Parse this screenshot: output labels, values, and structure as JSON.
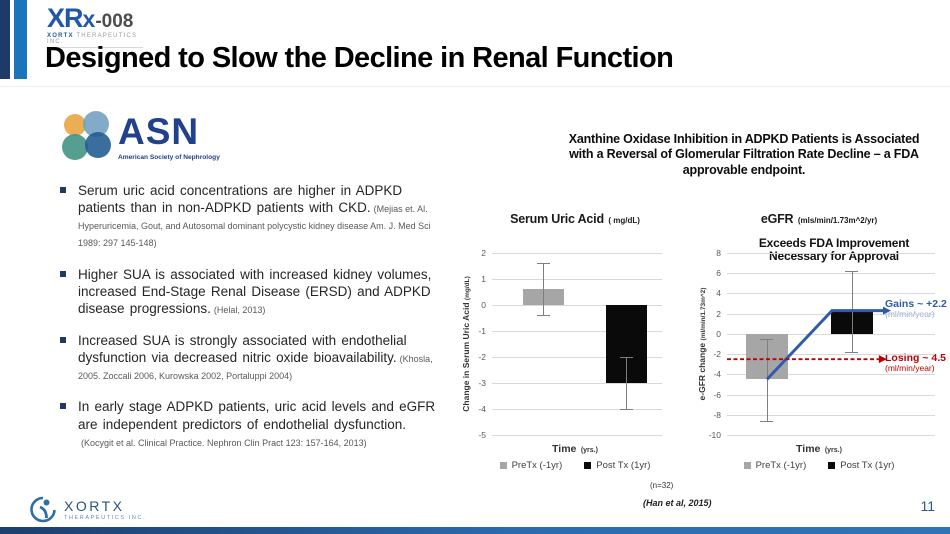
{
  "slide": {
    "title": "Designed to Slow the Decline in Renal Function",
    "page_number": "11"
  },
  "brand": {
    "logo_part1": "XR",
    "logo_part2": "x",
    "logo_part3": "-008",
    "logo_subtext_brand": "XORTX",
    "logo_subtext_rest": " THERAPEUTICS INC."
  },
  "asn": {
    "acronym": "ASN",
    "name": "American Society of Nephrology"
  },
  "bullets": [
    {
      "main": "Serum uric acid concentrations are higher in ADPKD patients than in non-ADPKD patients with CKD.",
      "citation": "(Mejias et. Al. Hyperuricemia, Gout, and Autosomal dominant polycystic kidney disease Am. J. Med Sci 1989: 297 145-148)"
    },
    {
      "main": "Higher SUA is associated with increased kidney volumes, increased End-Stage Renal Disease (ERSD) and ADPKD disease progressions.",
      "citation": "(Helal, 2013)"
    },
    {
      "main": "Increased SUA is strongly associated with endothelial dysfunction via decreased nitric oxide bioavailability.",
      "citation": "(Khosla, 2005. Zoccali 2006, Kurowska 2002, Portaluppi 2004)"
    },
    {
      "main": "In early stage ADPKD patients, uric acid levels and eGFR are independent predictors of endothelial dysfunction.",
      "citation": "(Kocygit et al. Clinical Practice. Nephron Clin Pract 123: 157-164, 2013)"
    }
  ],
  "right_panel": {
    "heading": "Xanthine Oxidase Inhibition in ADPKD Patients is Associated with a Reversal of Glomerular Filtration Rate Decline – a FDA approvable endpoint.",
    "sample_size": "(n=32)",
    "citation": "(Han et al, 2015)"
  },
  "footer": {
    "brand": "XORTX",
    "brand_sub": "THERAPEUTICS INC."
  },
  "colors": {
    "accent_dark": "#1e3a68",
    "accent_light": "#1b75bb",
    "brand_blue": "#2257a8",
    "gains_blue": "#2e5ca8",
    "losing_red": "#c00000"
  },
  "chart_data": [
    {
      "type": "bar",
      "title": "Serum Uric Acid",
      "title_unit": "( mg/dL)",
      "ylabel": "Change in Serum Uric Acid",
      "ylabel_unit": "(mg/dL)",
      "xlabel": "Time",
      "xlabel_unit": "(yrs.)",
      "ylim": [
        -5,
        2
      ],
      "ytick_step": 1,
      "grid": true,
      "categories": [
        "PreTx (-1yr)",
        "Post Tx (1yr)"
      ],
      "series": [
        {
          "name": "PreTx (-1yr)",
          "color": "#a6a6a6",
          "value": 0.6,
          "error_low": -0.4,
          "error_high": 1.6,
          "xf": 0.3
        },
        {
          "name": "Post Tx (1yr)",
          "color": "#0a0a0a",
          "value": -3.0,
          "error_low": -4.0,
          "error_high": -2.0,
          "xf": 0.79
        }
      ],
      "legend": [
        {
          "label": "PreTx (-1yr)",
          "color": "#a6a6a6"
        },
        {
          "label": "Post Tx (1yr)",
          "color": "#0a0a0a"
        }
      ]
    },
    {
      "type": "bar",
      "title": "eGFR",
      "title_unit": "(mls/min/1.73m^2/yr)",
      "ylabel": "e-GFR change",
      "ylabel_unit": "(ml/min/1.73m^2)",
      "xlabel": "Time",
      "xlabel_unit": "(yrs.)",
      "ylim": [
        -10,
        8
      ],
      "ytick_step": 2,
      "grid": true,
      "annotation": {
        "line1": "Exceeds FDA Improvement",
        "line2": "Necessary for Approval"
      },
      "categories": [
        "PreTx (-1yr)",
        "Post Tx (1yr)"
      ],
      "series": [
        {
          "name": "PreTx (-1yr)",
          "color": "#a6a6a6",
          "value": -4.5,
          "error_low": -8.6,
          "error_high": -0.5,
          "xf": 0.192
        },
        {
          "name": "Post Tx (1yr)",
          "color": "#0a0a0a",
          "value": 2.2,
          "error_low": -1.8,
          "error_high": 6.2,
          "xf": 0.6
        }
      ],
      "lines": [
        {
          "name": "gains-trend",
          "color": "#2e5ca8",
          "width": 3,
          "dashed": false,
          "arrow": true,
          "points": [
            {
              "xf": 0.192,
              "v": -4.5
            },
            {
              "xf": 0.505,
              "v": 2.3
            },
            {
              "xf": 0.75,
              "v": 2.3
            }
          ]
        },
        {
          "name": "losing-reference",
          "color": "#c00000",
          "width": 1.8,
          "dashed": true,
          "arrow": true,
          "points": [
            {
              "xf": 0.0,
              "v": -2.5
            },
            {
              "xf": 0.73,
              "v": -2.5
            }
          ]
        }
      ],
      "callouts": [
        {
          "name": "gains",
          "text": "Gains ~ +2.2",
          "unit": "(ml/min/year)",
          "color": "#2e5ca8",
          "unit_color": "#8ea9d8"
        },
        {
          "name": "losing",
          "text": "Losing ~ 4.5",
          "unit": "(ml/min/year)",
          "color": "#c00000",
          "unit_color": "#c00000"
        }
      ],
      "legend": [
        {
          "label": "PreTx (-1yr)",
          "color": "#a6a6a6"
        },
        {
          "label": "Post Tx (1yr)",
          "color": "#0a0a0a"
        }
      ]
    }
  ]
}
